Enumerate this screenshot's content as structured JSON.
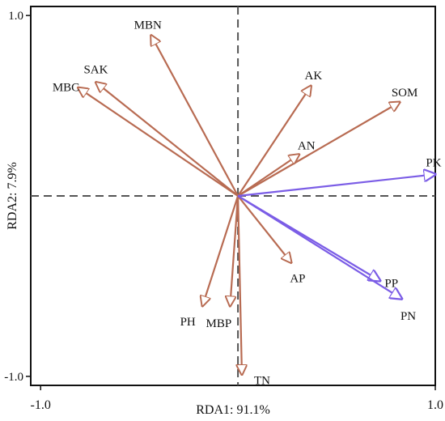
{
  "chart_data": {
    "type": "biplot",
    "xlabel": "RDA1:  91.1%",
    "ylabel": "RDA2: 7.9%",
    "xlim": [
      -1.05,
      1.0
    ],
    "ylim": [
      -1.05,
      1.05
    ],
    "x_ticks": [
      {
        "value": -1.0,
        "label": "-1.0"
      },
      {
        "value": 1.0,
        "label": "1.0"
      }
    ],
    "y_ticks": [
      {
        "value": 1.0,
        "label": "1.0"
      },
      {
        "value": -1.0,
        "label": "-1.0"
      }
    ],
    "grid": false,
    "reference_lines": "dashed lines at x=0 and y=0",
    "vectors": [
      {
        "name": "MBN",
        "x": -0.44,
        "y": 0.89,
        "group": "soil"
      },
      {
        "name": "SAK",
        "x": -0.72,
        "y": 0.63,
        "group": "soil"
      },
      {
        "name": "MBC",
        "x": -0.81,
        "y": 0.6,
        "group": "soil"
      },
      {
        "name": "AK",
        "x": 0.37,
        "y": 0.61,
        "group": "soil"
      },
      {
        "name": "SOM",
        "x": 0.82,
        "y": 0.52,
        "group": "soil"
      },
      {
        "name": "AN",
        "x": 0.31,
        "y": 0.23,
        "group": "soil"
      },
      {
        "name": "AP",
        "x": 0.27,
        "y": -0.37,
        "group": "soil"
      },
      {
        "name": "PH",
        "x": -0.18,
        "y": -0.61,
        "group": "soil"
      },
      {
        "name": "MBP",
        "x": -0.04,
        "y": -0.61,
        "group": "soil"
      },
      {
        "name": "TN",
        "x": 0.02,
        "y": -0.99,
        "group": "soil"
      },
      {
        "name": "PK",
        "x": 1.0,
        "y": 0.12,
        "group": "response"
      },
      {
        "name": "PP",
        "x": 0.72,
        "y": -0.47,
        "group": "response"
      },
      {
        "name": "PN",
        "x": 0.83,
        "y": -0.57,
        "group": "response"
      }
    ],
    "colors": {
      "soil": "#b86b52",
      "response": "#7b5de6",
      "axis": "#111111",
      "reference": "#555555"
    }
  }
}
